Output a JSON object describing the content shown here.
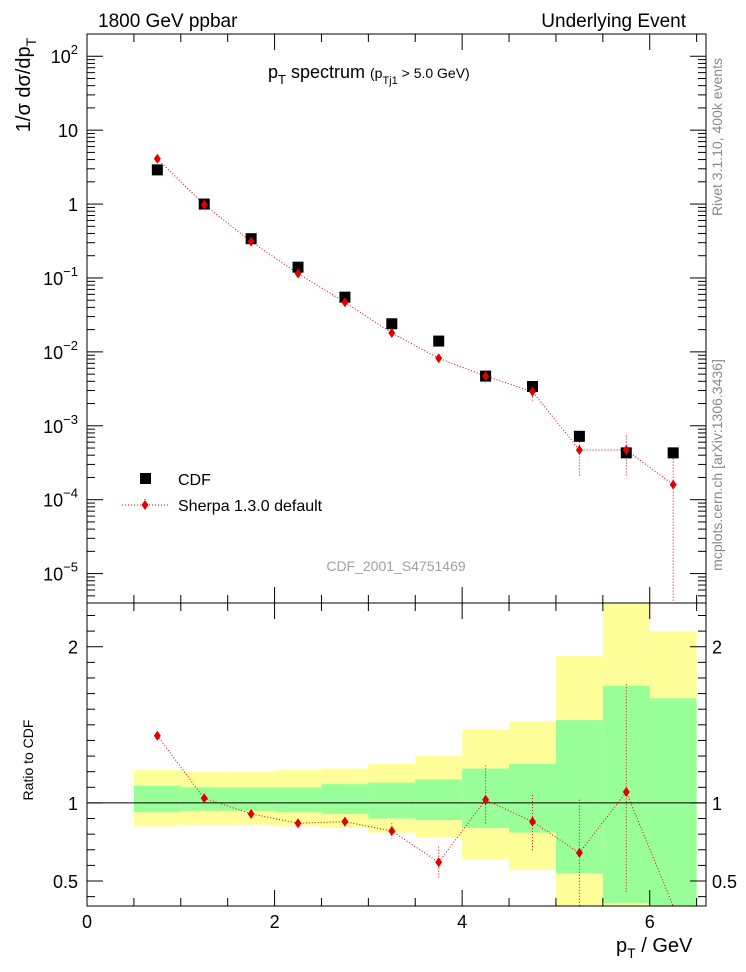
{
  "header": {
    "left": "1800 GeV ppbar",
    "right": "Underlying Event"
  },
  "side_labels": {
    "rivet": "Rivet 3.1.10,  400k events",
    "mcplots": "mcplots.cern.ch [arXiv:1306.3436]"
  },
  "chart_data": [
    {
      "type": "scatter",
      "panel": "main",
      "title": "p_T spectrum (p_Tj1 > 5.0 GeV)",
      "title_main": "p",
      "title_main_sub": "T",
      "title_main_rest": " spectrum ",
      "title_cut_open": "(p",
      "title_cut_sub": "Tj1",
      "title_cut_rest": " > 5.0 GeV)",
      "ylabel_a": "1/",
      "ylabel_b": "σ",
      "ylabel_c": " dσ/dp",
      "ylabel_sub": "T",
      "y_scale": "log",
      "ylim": [
        4e-06,
        200
      ],
      "xlim": [
        0,
        6.6
      ],
      "y_tick_labels": [
        {
          "value": 100,
          "base": "10",
          "exp": "2"
        },
        {
          "value": 10,
          "base": "10",
          "exp": ""
        },
        {
          "value": 1,
          "base": "1",
          "exp": ""
        },
        {
          "value": 0.1,
          "base": "10",
          "exp": "−1"
        },
        {
          "value": 0.01,
          "base": "10",
          "exp": "−2"
        },
        {
          "value": 0.001,
          "base": "10",
          "exp": "−3"
        },
        {
          "value": 0.0001,
          "base": "10",
          "exp": "−4"
        },
        {
          "value": 1e-05,
          "base": "10",
          "exp": "−5"
        }
      ],
      "watermark": "CDF_2001_S4751469",
      "legend_position": "bottom-left",
      "series": [
        {
          "name": "CDF",
          "marker": "square",
          "color": "#000000",
          "x": [
            0.75,
            1.25,
            1.75,
            2.25,
            2.75,
            3.25,
            3.75,
            4.25,
            4.75,
            5.25,
            5.75,
            6.25
          ],
          "y": [
            2.9,
            1.0,
            0.34,
            0.14,
            0.055,
            0.024,
            0.014,
            0.0047,
            0.0034,
            0.00072,
            0.00043,
            0.00043
          ]
        },
        {
          "name": "Sherpa 1.3.0 default",
          "marker": "diamond",
          "color": "#e00000",
          "x": [
            0.75,
            1.25,
            1.75,
            2.25,
            2.75,
            3.25,
            3.75,
            4.25,
            4.75,
            5.25,
            5.75,
            6.25
          ],
          "y": [
            4.1,
            0.98,
            0.31,
            0.115,
            0.047,
            0.018,
            0.0082,
            0.0047,
            0.0029,
            0.00047,
            0.00047,
            0.00016
          ],
          "y_low": [
            4.0,
            0.96,
            0.3,
            0.11,
            0.044,
            0.016,
            0.0072,
            0.0038,
            0.0022,
            0.0002,
            0.0002,
            1e-06
          ],
          "y_high": [
            4.2,
            1.0,
            0.32,
            0.12,
            0.05,
            0.02,
            0.0092,
            0.0056,
            0.0036,
            0.00074,
            0.00074,
            0.00036
          ]
        }
      ]
    },
    {
      "type": "scatter",
      "panel": "ratio",
      "ylabel": "Ratio to CDF",
      "xlabel_a": "p",
      "xlabel_sub": "T",
      "xlabel_b": " / GeV",
      "ylim": [
        0.34,
        2.28
      ],
      "xlim": [
        0,
        6.6
      ],
      "y_ticks": [
        0.5,
        1,
        2
      ],
      "y_tick_labels": [
        "0.5",
        "1",
        "2"
      ],
      "x_ticks": [
        0,
        2,
        4,
        6
      ],
      "x_tick_labels": [
        "0",
        "2",
        "4",
        "6"
      ],
      "bands": {
        "edges": [
          0.5,
          1.0,
          1.5,
          2.0,
          2.5,
          3.0,
          3.5,
          4.0,
          4.5,
          5.0,
          5.5,
          6.0,
          6.5
        ],
        "yellow_low": [
          0.85,
          0.86,
          0.86,
          0.85,
          0.84,
          0.81,
          0.78,
          0.64,
          0.57,
          0.34,
          0.34,
          0.34
        ],
        "yellow_high": [
          1.21,
          1.2,
          1.2,
          1.21,
          1.22,
          1.25,
          1.3,
          1.47,
          1.52,
          1.94,
          2.3,
          2.1
        ],
        "green_low": [
          0.94,
          0.95,
          0.95,
          0.94,
          0.93,
          0.9,
          0.89,
          0.84,
          0.81,
          0.55,
          0.36,
          0.34
        ],
        "green_high": [
          1.11,
          1.1,
          1.1,
          1.1,
          1.12,
          1.13,
          1.15,
          1.22,
          1.25,
          1.53,
          1.75,
          1.67
        ],
        "yellow_color": "#ffff99",
        "green_color": "#99ff99"
      },
      "series": [
        {
          "name": "Sherpa 1.3.0 default",
          "color": "#e00000",
          "x": [
            0.75,
            1.25,
            1.75,
            2.25,
            2.75,
            3.25,
            3.75,
            4.25,
            4.75,
            5.25,
            5.75,
            6.25
          ],
          "y": [
            1.43,
            1.03,
            0.93,
            0.87,
            0.88,
            0.82,
            0.62,
            1.02,
            0.88,
            0.68,
            1.07,
            0.34
          ],
          "y_low": [
            1.43,
            1.03,
            0.93,
            0.85,
            0.85,
            0.77,
            0.52,
            0.86,
            0.69,
            0.34,
            0.43,
            0.34
          ],
          "y_high": [
            1.43,
            1.03,
            0.93,
            0.89,
            0.91,
            0.87,
            0.72,
            1.24,
            1.05,
            1.02,
            1.76,
            0.34
          ]
        }
      ]
    }
  ]
}
